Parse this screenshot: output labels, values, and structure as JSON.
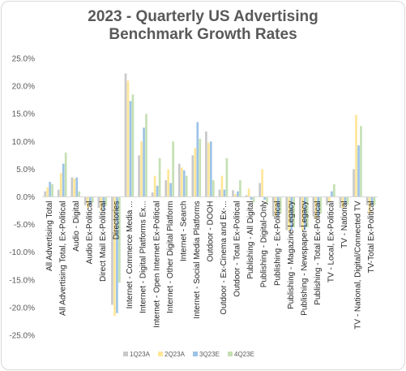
{
  "chart_data": {
    "type": "bar",
    "title_lines": [
      "2023 - Quarterly US Advertising",
      "Benchmark Growth Rates"
    ],
    "categories": [
      "All Advertising Total",
      "All Advertising Total, Ex-Political",
      "Audio - Digital",
      "Audio Ex-Political",
      "Direct Mail Ex-Political",
      "Directories",
      "Internet - Commerce Media ...",
      "Internet - Digital Platforms Ex...",
      "Internet - Open Internet Ex-Political",
      "Internet - Other Digital Platform",
      "Internet - Search",
      "Internet - Social Media Platforms",
      "Outdoor - DOOH",
      "Outdoor - Ex-Cinema and Ex-...",
      "Outdoor - Total Ex-Political",
      "Publishing - All Digital",
      "Publishing - Digital-Only",
      "Publishing - Ex-Political",
      "Publishing - Magazine Legacy",
      "Publishing - Newspaper-Legacy",
      "Publishing - Total Ex-Political",
      "TV - Local, Ex-Political",
      "TV - National",
      "TV - National, Digital/Connected TV",
      "TV-Total Ex-Political"
    ],
    "series": [
      {
        "name": "1Q23A",
        "color": "#c9c9c9",
        "values": [
          1.0,
          1.3,
          3.5,
          -1.5,
          -2.0,
          -19.5,
          22.3,
          7.5,
          0.8,
          3.0,
          6.0,
          7.5,
          11.8,
          1.3,
          1.2,
          0.3,
          2.5,
          -3.5,
          -6.0,
          -5.5,
          -3.5,
          -1.5,
          -2.0,
          5.0,
          -1.5
        ]
      },
      {
        "name": "2Q23A",
        "color": "#ffe699",
        "values": [
          1.7,
          4.3,
          3.3,
          -2.0,
          -2.5,
          -21.5,
          21.0,
          10.0,
          3.8,
          5.0,
          5.3,
          8.8,
          9.8,
          3.8,
          0.5,
          1.5,
          5.0,
          -3.5,
          -6.0,
          -6.0,
          -4.0,
          -0.8,
          -2.0,
          14.8,
          -3.0
        ]
      },
      {
        "name": "3Q23E",
        "color": "#9dc3e6",
        "values": [
          2.7,
          6.0,
          3.5,
          -1.5,
          -2.5,
          -21.0,
          17.3,
          12.5,
          2.0,
          2.5,
          4.8,
          13.5,
          10.0,
          1.3,
          1.0,
          -0.5,
          -0.5,
          -3.5,
          -6.0,
          -6.0,
          -3.5,
          1.0,
          -1.5,
          9.3,
          -1.5
        ]
      },
      {
        "name": "4Q23E",
        "color": "#c5e0b4",
        "values": [
          2.3,
          8.0,
          1.0,
          -1.0,
          -1.5,
          -15.5,
          18.5,
          15.0,
          7.0,
          10.0,
          3.8,
          10.5,
          3.0,
          7.0,
          3.0,
          -1.0,
          -1.0,
          -3.0,
          -5.5,
          -5.5,
          -3.0,
          2.3,
          -1.5,
          12.8,
          -1.5
        ]
      }
    ],
    "ylim": [
      -25,
      25
    ],
    "yticks": [
      -25,
      -20,
      -15,
      -10,
      -5,
      0,
      5,
      10,
      15,
      20,
      25
    ],
    "ytick_labels": [
      "-25.0%",
      "-20.0%",
      "-15.0%",
      "-10.0%",
      "-5.0%",
      "0.0%",
      "5.0%",
      "10.0%",
      "15.0%",
      "20.0%",
      "25.0%"
    ],
    "grid": false,
    "legend_position": "bottom"
  }
}
